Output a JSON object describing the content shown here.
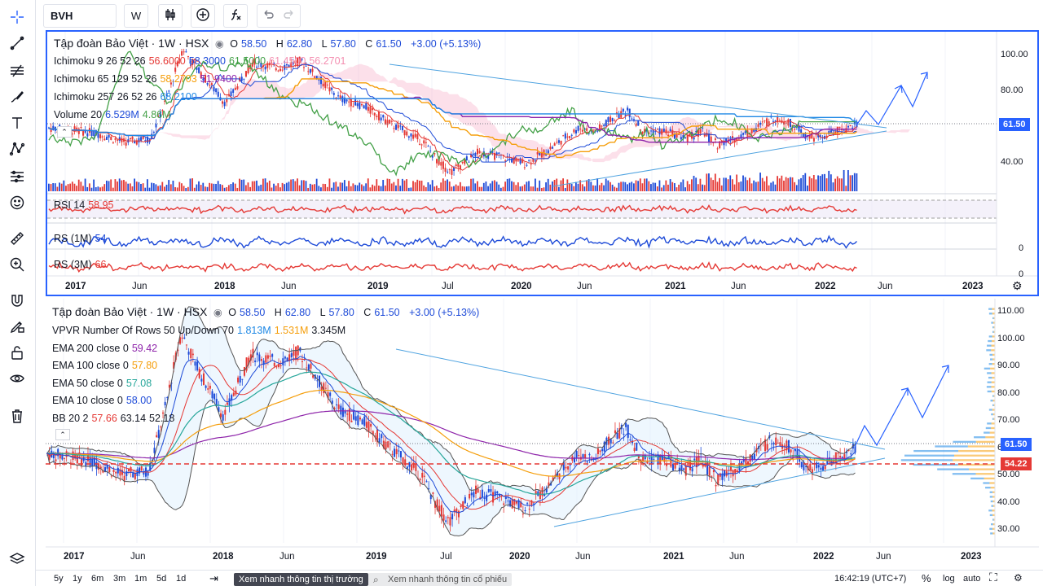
{
  "toolbar": {
    "symbol": "BVH",
    "interval": "W"
  },
  "top_pane": {
    "title": "Tập đoàn Bảo Việt · 1W · HSX",
    "ohlc": {
      "o_label": "O",
      "o": "58.50",
      "h_label": "H",
      "h": "62.80",
      "l_label": "L",
      "l": "57.80",
      "c_label": "C",
      "c": "61.50",
      "change": "+3.00 (+5.13%)"
    },
    "indicators": [
      {
        "name": "Ichimoku 9 26 52 26",
        "values": [
          "56.6000",
          "58.3000",
          "61.5000",
          "61.4500",
          "56.2701"
        ],
        "colors": [
          "#e53935",
          "#1e4bd8",
          "#43a047",
          "#f48fb1",
          "#f48fb1"
        ]
      },
      {
        "name": "Ichimoku 65 129 52 26",
        "values": [
          "58.2703",
          "51.9400"
        ],
        "colors": [
          "#f59e0b",
          "#8e24aa"
        ]
      },
      {
        "name": "Ichimoku 257 26 52 26",
        "values": [
          "68.2100"
        ],
        "colors": [
          "#1e88e5"
        ]
      },
      {
        "name": "Volume 20",
        "values": [
          "6.529M",
          "4.86M"
        ],
        "colors": [
          "#1e4bd8",
          "#43a047"
        ]
      }
    ],
    "rsi_label": "RSI 14",
    "rsi_value": "58.95",
    "rs1m_label": "RS (1M)",
    "rs1m_value": "54",
    "rs3m_label": "RS (3M)",
    "rs3m_value": "66",
    "price_ticks": [
      "100.00",
      "80.00",
      "60.00",
      "40.00"
    ],
    "last_price": "61.50",
    "rs_zero_1": "0",
    "rs_zero_2": "0",
    "time_labels": [
      "2017",
      "Jun",
      "2018",
      "Jun",
      "2019",
      "Jul",
      "2020",
      "Jun",
      "2021",
      "Jun",
      "2022",
      "Jun",
      "2023"
    ]
  },
  "bottom_pane": {
    "title": "Tập đoàn Bảo Việt · 1W · HSX",
    "ohlc": {
      "o_label": "O",
      "o": "58.50",
      "h_label": "H",
      "h": "62.80",
      "l_label": "L",
      "l": "57.80",
      "c_label": "C",
      "c": "61.50",
      "change": "+3.00 (+5.13%)"
    },
    "indicators": [
      {
        "name": "VPVR Number Of Rows 50 Up/Down 70",
        "values": [
          "1.813M",
          "1.531M",
          "3.345M"
        ],
        "colors": [
          "#1e88e5",
          "#f59e0b",
          "#131722"
        ]
      },
      {
        "name": "EMA 200 close 0",
        "values": [
          "59.42"
        ],
        "colors": [
          "#8e24aa"
        ]
      },
      {
        "name": "EMA 100 close 0",
        "values": [
          "57.80"
        ],
        "colors": [
          "#f59e0b"
        ]
      },
      {
        "name": "EMA 50 close 0",
        "values": [
          "57.08"
        ],
        "colors": [
          "#26a69a"
        ]
      },
      {
        "name": "EMA 10 close 0",
        "values": [
          "58.00"
        ],
        "colors": [
          "#1e4bd8"
        ]
      },
      {
        "name": "BB 20 2",
        "values": [
          "57.66",
          "63.14",
          "52.18"
        ],
        "colors": [
          "#e53935",
          "#131722",
          "#131722"
        ]
      }
    ],
    "price_ticks": [
      "110.00",
      "100.00",
      "90.00",
      "80.00",
      "70.00",
      "60.00",
      "50.00",
      "40.00",
      "30.00"
    ],
    "last_price": "61.50",
    "poc_price": "54.22",
    "time_labels": [
      "2017",
      "Jun",
      "2018",
      "Jun",
      "2019",
      "Jul",
      "2020",
      "Jun",
      "2021",
      "Jun",
      "2022",
      "Jun",
      "2023"
    ]
  },
  "bottom_bar": {
    "ranges": [
      "5y",
      "1y",
      "6m",
      "3m",
      "1m",
      "5d",
      "1d"
    ],
    "quick_view": "Xem nhanh thông tin thị trường",
    "quick_search_placeholder": "Xem nhanh thông tin cổ phiếu",
    "clock": "16:42:19 (UTC+7)",
    "percent": "%",
    "log": "log",
    "auto": "auto"
  },
  "colors": {
    "up": "#1e4bd8",
    "down": "#e53935",
    "accent": "#2962ff",
    "price_tag": "#2962ff",
    "poc_tag": "#e53935"
  }
}
